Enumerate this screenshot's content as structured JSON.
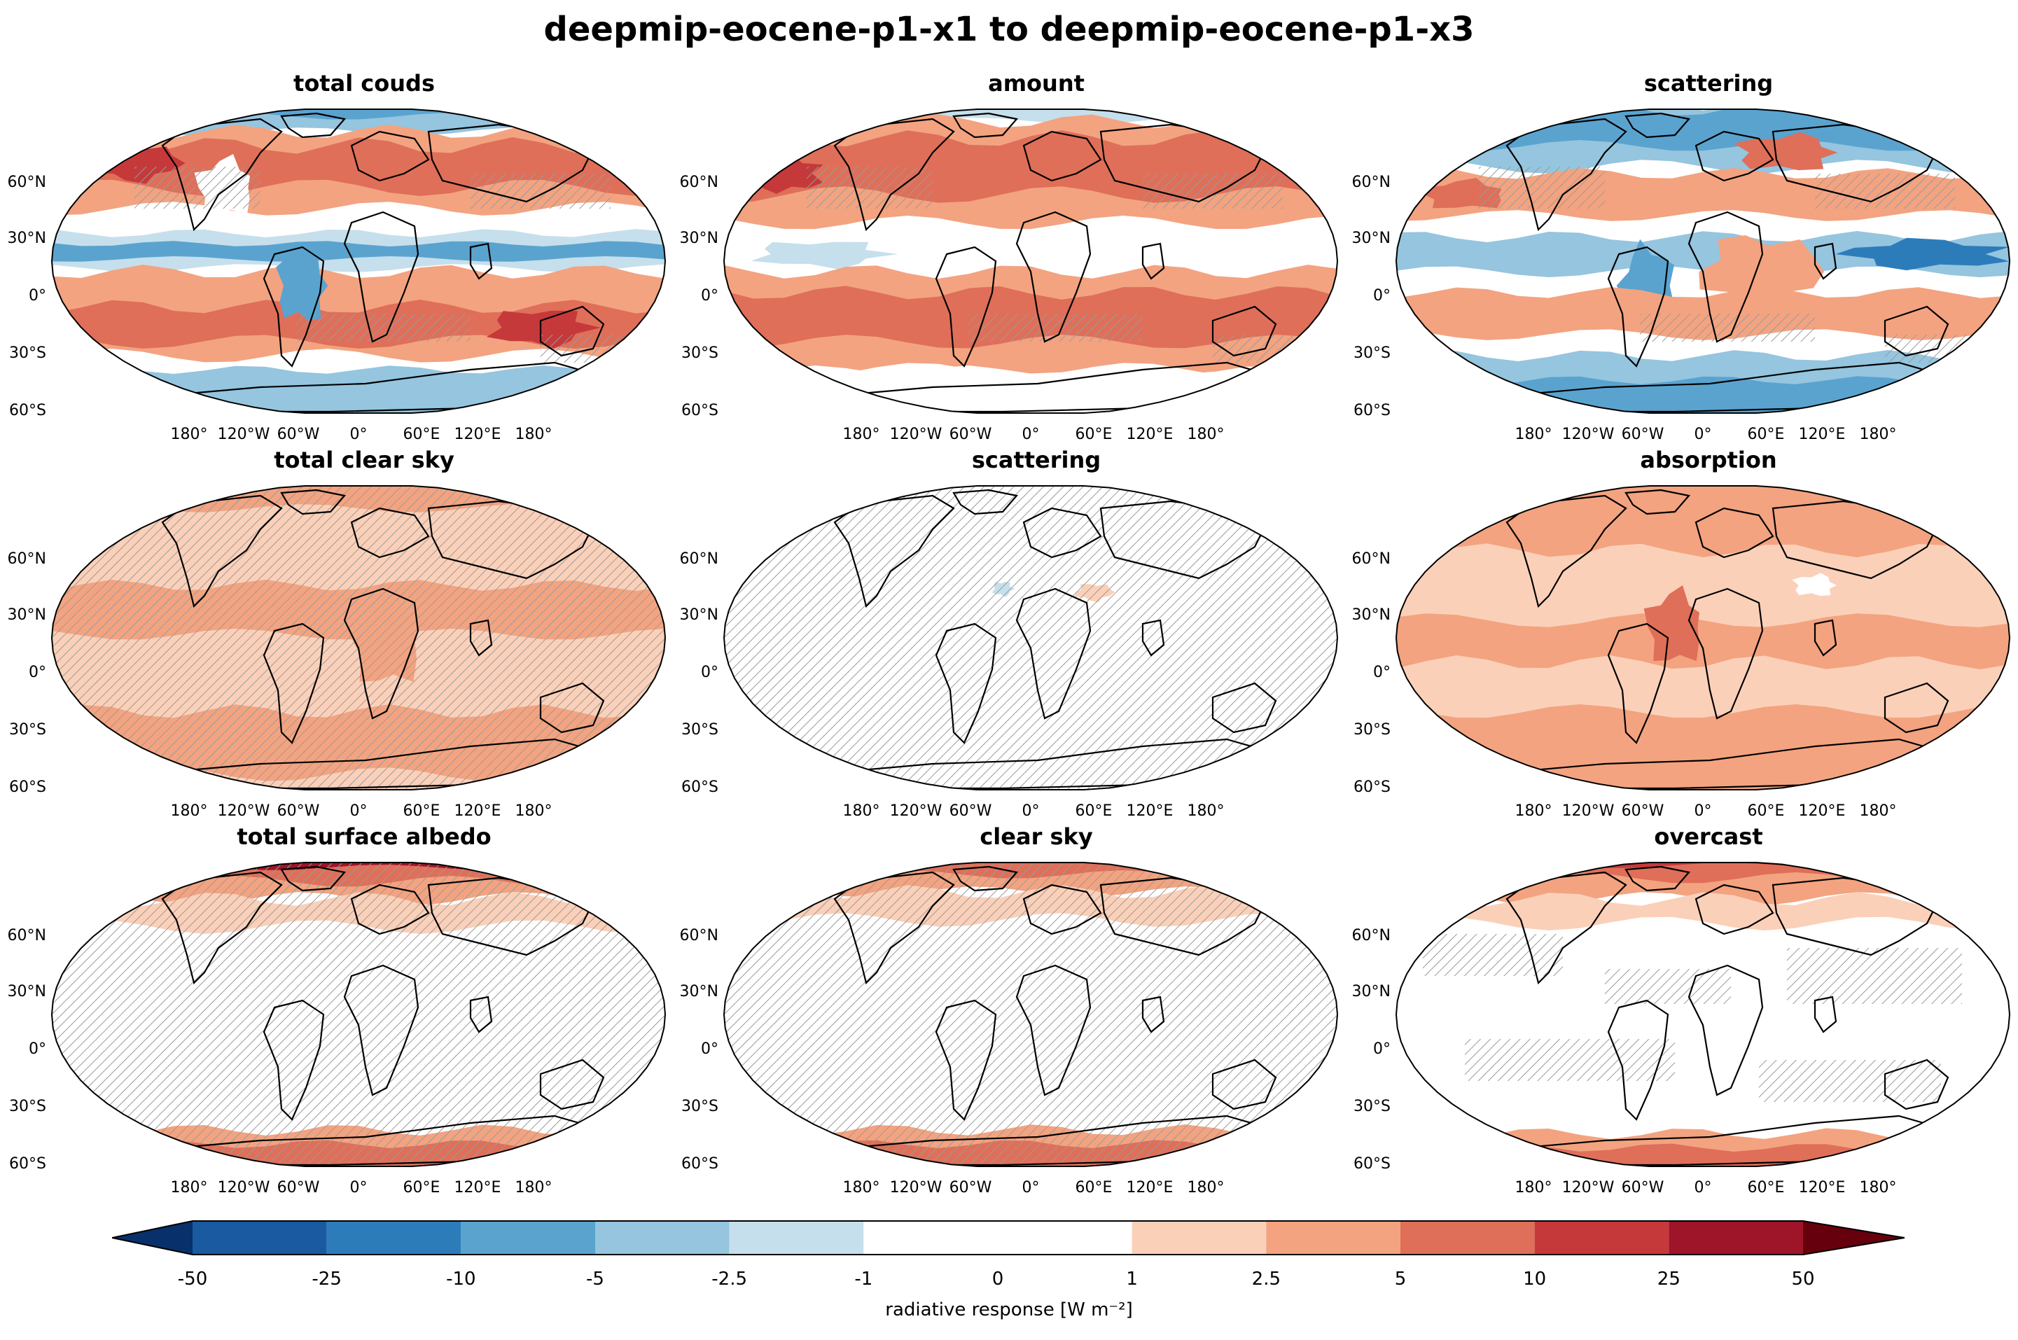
{
  "title": "deepmip-eocene-p1-x1 to deepmip-eocene-p1-x3",
  "lat_labels": [
    "60°N",
    "30°N",
    "0°",
    "30°S",
    "60°S"
  ],
  "lon_labels": [
    "180°",
    "120°W",
    "60°W",
    "0°",
    "60°E",
    "120°E",
    "180°"
  ],
  "panels": [
    {
      "title": "total couds",
      "pattern": "cloud_total",
      "hatch": "sparse"
    },
    {
      "title": "amount",
      "pattern": "amount",
      "hatch": "sparse"
    },
    {
      "title": "scattering",
      "pattern": "cloud_scatter",
      "hatch": "sparse"
    },
    {
      "title": "total clear sky",
      "pattern": "clear_total",
      "hatch": "full"
    },
    {
      "title": "scattering",
      "pattern": "neutral",
      "hatch": "full"
    },
    {
      "title": "absorption",
      "pattern": "absorption",
      "hatch": "none"
    },
    {
      "title": "total surface albedo",
      "pattern": "albedo_total",
      "hatch": "full"
    },
    {
      "title": "clear sky",
      "pattern": "albedo_clear",
      "hatch": "full"
    },
    {
      "title": "overcast",
      "pattern": "albedo_overcast",
      "hatch": "patchy"
    }
  ],
  "colorbar": {
    "ticks": [
      "-50",
      "-25",
      "-10",
      "-5",
      "-2.5",
      "-1",
      "0",
      "1",
      "2.5",
      "5",
      "10",
      "25",
      "50"
    ],
    "bounds": [
      -50,
      -25,
      -10,
      -5,
      -2.5,
      -1,
      1,
      2.5,
      5,
      10,
      25,
      50
    ],
    "colors": [
      "#1a5aa0",
      "#2d7cba",
      "#5aa3cf",
      "#95c5df",
      "#c6dfec",
      "#ffffff",
      "#fbd0b9",
      "#f3a380",
      "#df6f59",
      "#c6393a",
      "#9e1428"
    ],
    "under_color": "#08306b",
    "over_color": "#67000d",
    "label": "radiative response [W m⁻²]",
    "extend": "both"
  },
  "colors": {
    "blue_strong": "#2d7cba",
    "blue_mid": "#5aa3cf",
    "blue_light": "#95c5df",
    "blue_pale": "#c6dfec",
    "red_pale": "#fbd0b9",
    "red_light": "#f3a380",
    "red_mid": "#df6f59",
    "red_strong": "#c6393a",
    "red_dark": "#9e1428",
    "hatch": "#9a9a9a",
    "coast": "#000000"
  }
}
